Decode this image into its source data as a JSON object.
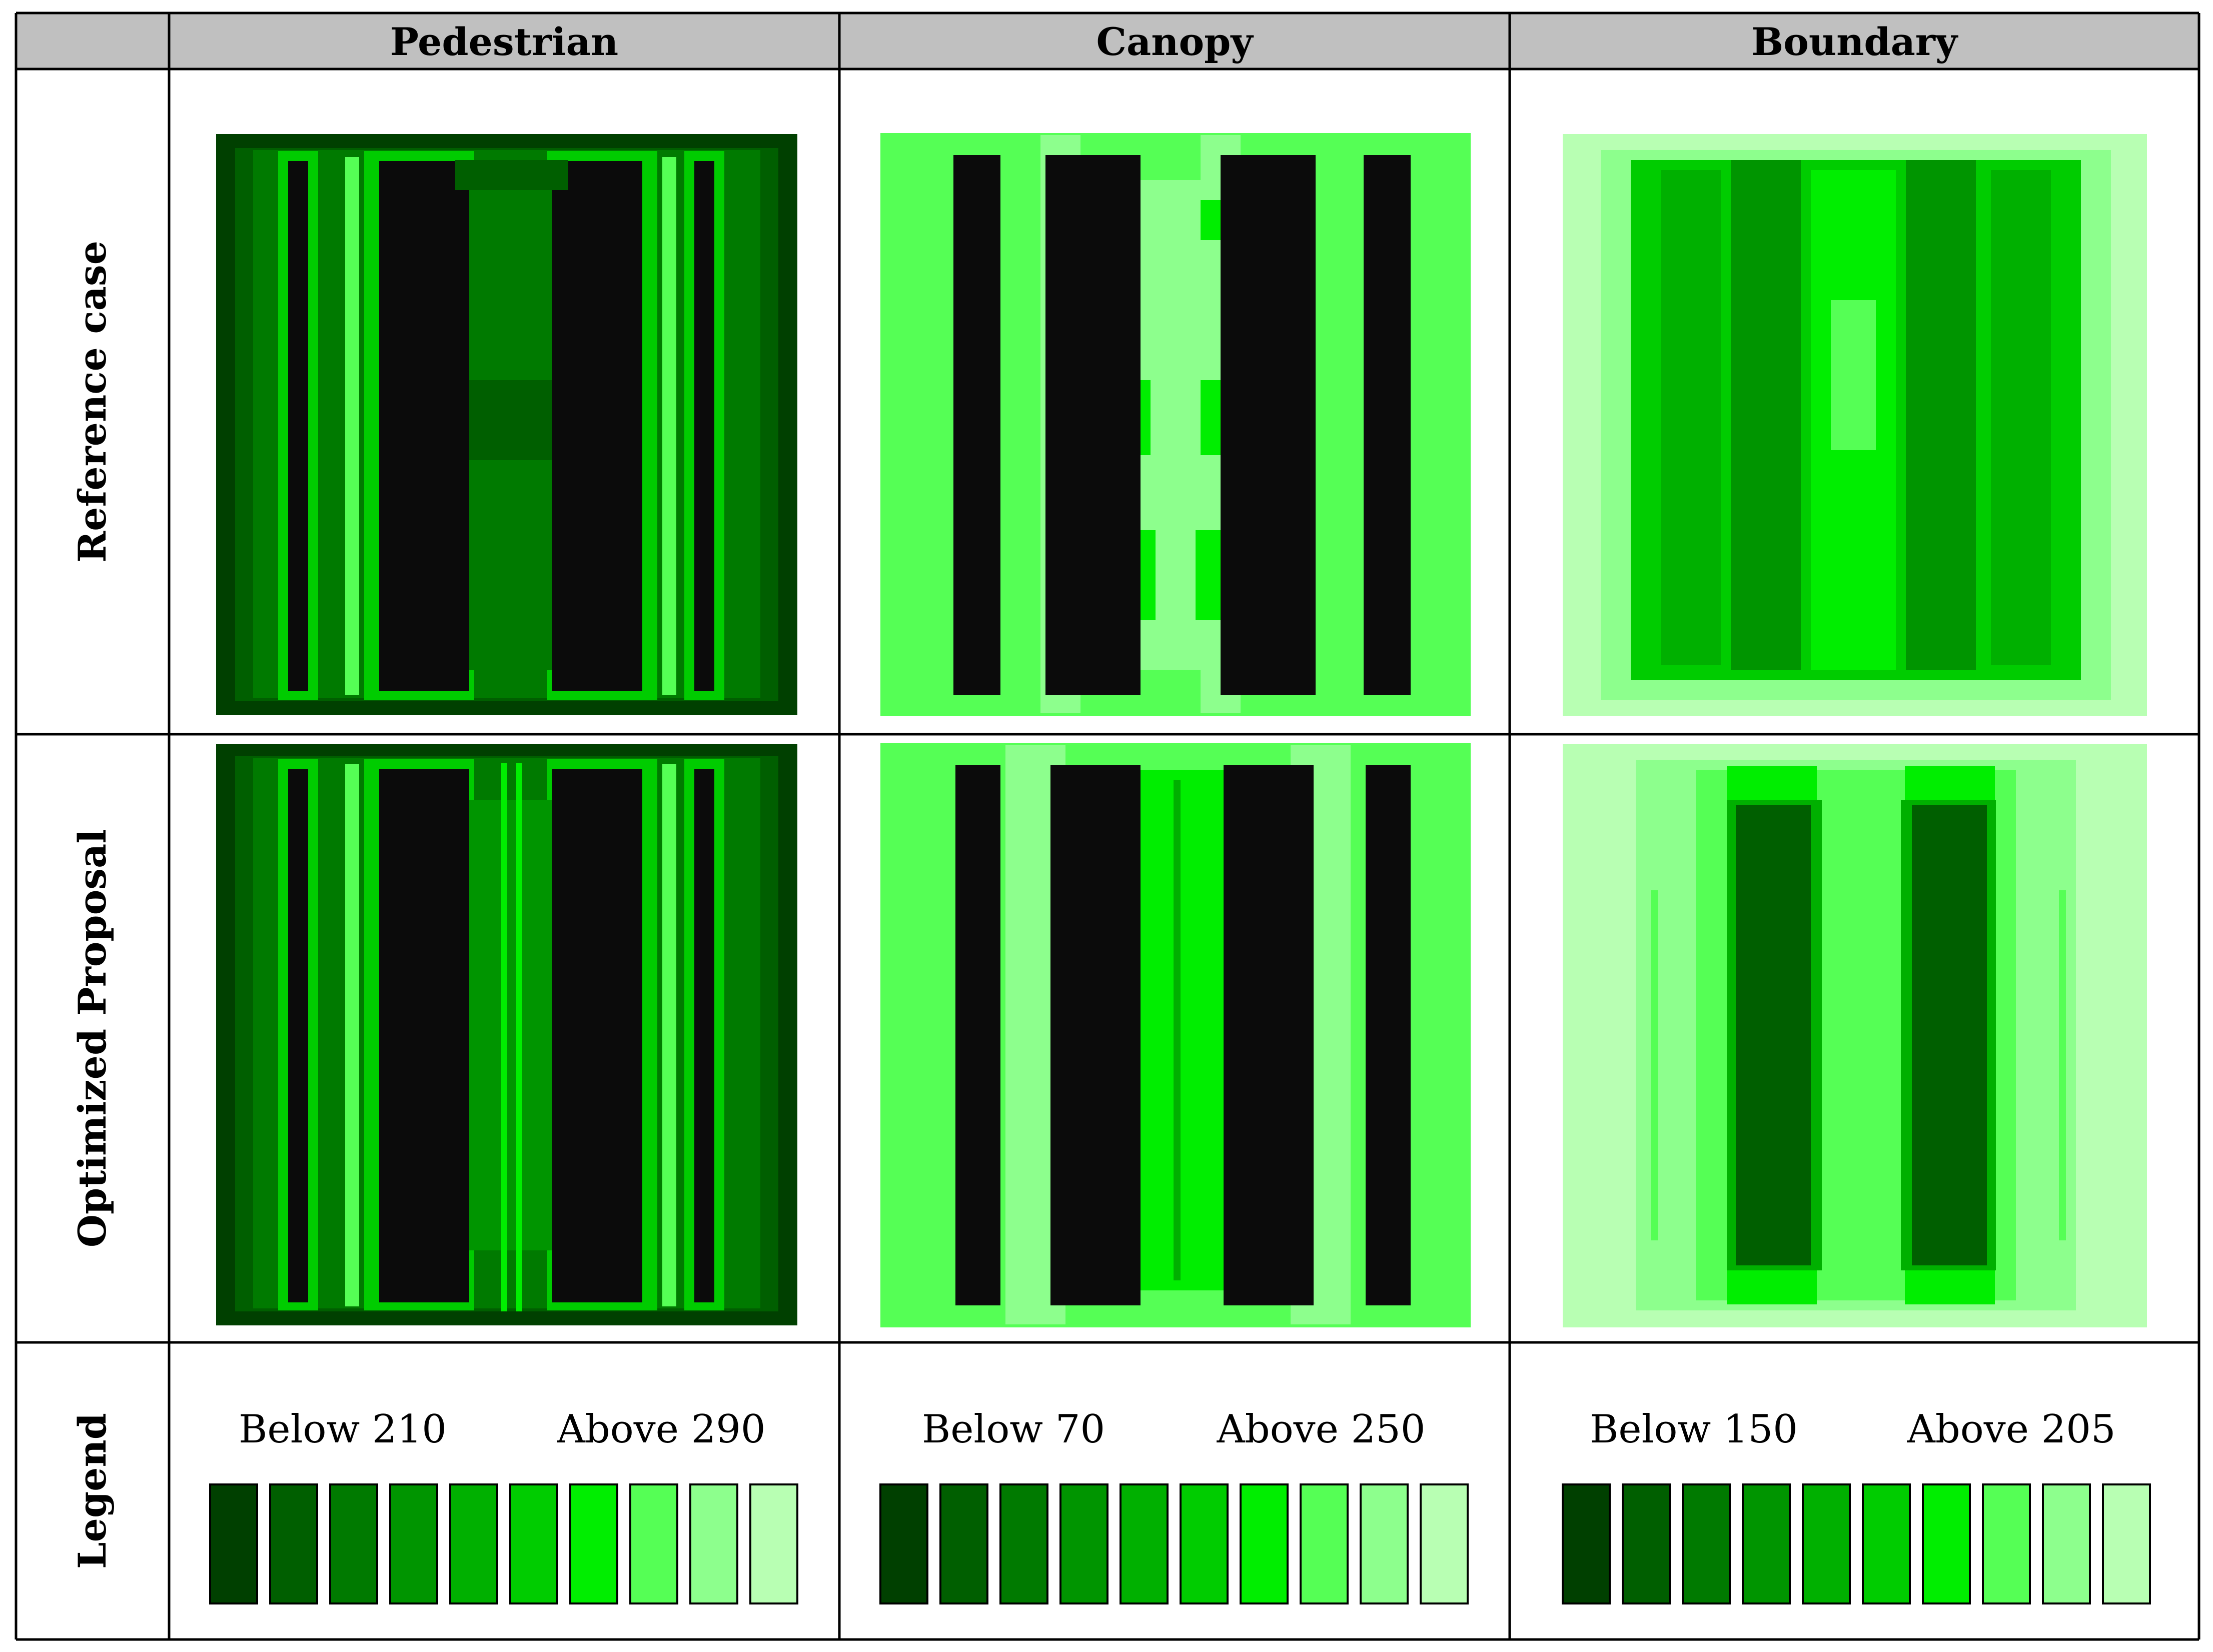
{
  "table": {
    "columns": [
      "Pedestrian",
      "Canopy",
      "Boundary"
    ],
    "rows": [
      "Reference case",
      "Optimized Proposal",
      "Legend"
    ]
  },
  "colors": {
    "header_bg": "#c0c0c0",
    "building": "#0b0b0b",
    "scale": [
      "#004000",
      "#005f00",
      "#007a00",
      "#009500",
      "#00b000",
      "#00cc00",
      "#00ee00",
      "#55ff55",
      "#8dff8d",
      "#b8ffb3"
    ]
  },
  "legends": [
    {
      "low": "Below 210",
      "high": "Above 290"
    },
    {
      "low": "Below 70",
      "high": "Above 250"
    },
    {
      "low": "Below 150",
      "high": "Above 205"
    }
  ]
}
